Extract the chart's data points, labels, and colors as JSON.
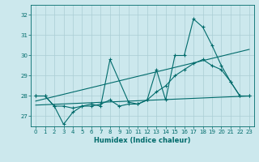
{
  "xlabel": "Humidex (Indice chaleur)",
  "bg_color": "#cce8ed",
  "grid_color": "#aacdd4",
  "line_color": "#006b6b",
  "xlim": [
    -0.5,
    23.5
  ],
  "ylim": [
    26.5,
    32.5
  ],
  "yticks": [
    27,
    28,
    29,
    30,
    31,
    32
  ],
  "xticks": [
    0,
    1,
    2,
    3,
    4,
    5,
    6,
    7,
    8,
    9,
    10,
    11,
    12,
    13,
    14,
    15,
    16,
    17,
    18,
    19,
    20,
    21,
    22,
    23
  ],
  "curve_main_x": [
    0,
    1,
    2,
    3,
    4,
    5,
    6,
    7,
    8,
    10,
    11,
    12,
    13,
    14,
    15,
    16,
    17,
    18,
    19,
    20,
    21,
    22,
    23
  ],
  "curve_main_y": [
    28.0,
    28.0,
    27.5,
    26.6,
    27.2,
    27.5,
    27.6,
    27.5,
    29.8,
    27.7,
    27.6,
    27.8,
    29.3,
    27.8,
    30.0,
    30.0,
    31.8,
    31.4,
    30.5,
    29.5,
    28.7,
    28.0,
    28.0
  ],
  "curve_smooth_x": [
    0,
    1,
    2,
    3,
    4,
    5,
    6,
    7,
    8,
    9,
    10,
    11,
    12,
    13,
    14,
    15,
    16,
    17,
    18,
    19,
    20,
    21,
    22,
    23
  ],
  "curve_smooth_y": [
    28.0,
    28.0,
    27.5,
    27.5,
    27.4,
    27.5,
    27.5,
    27.6,
    27.8,
    27.5,
    27.6,
    27.6,
    27.8,
    28.2,
    28.5,
    29.0,
    29.3,
    29.6,
    29.8,
    29.5,
    29.3,
    28.7,
    28.0,
    28.0
  ],
  "trend1_x": [
    0,
    23
  ],
  "trend1_y": [
    27.75,
    30.3
  ],
  "trend2_x": [
    0,
    23
  ],
  "trend2_y": [
    27.55,
    28.0
  ],
  "xlabel_fontsize": 6,
  "tick_fontsize": 5,
  "linewidth": 0.8,
  "marker_size": 2.5
}
